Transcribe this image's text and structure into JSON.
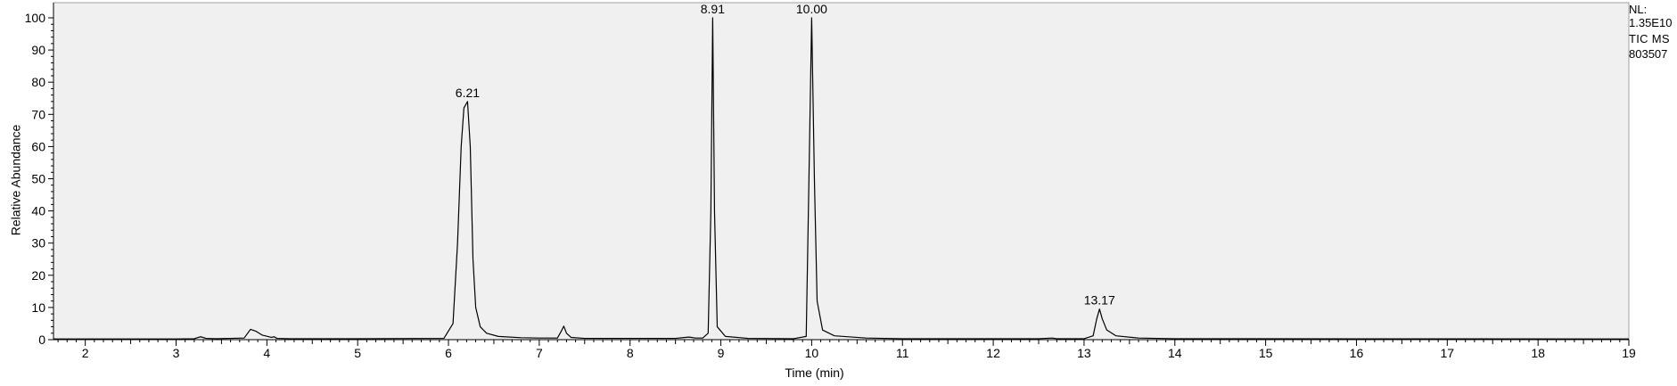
{
  "side_info": {
    "nl_label": "NL:",
    "nl_value": "1.35E10",
    "trace_label": "TIC  MS",
    "file_id": "803507"
  },
  "chart_data": {
    "type": "line",
    "title": "",
    "xlabel": "Time (min)",
    "ylabel": "Relative Abundance",
    "xlim": [
      1.65,
      19.0
    ],
    "ylim": [
      0,
      100
    ],
    "xticks": [
      2,
      3,
      4,
      5,
      6,
      7,
      8,
      9,
      10,
      11,
      12,
      13,
      14,
      15,
      16,
      17,
      18,
      19
    ],
    "yticks": [
      0,
      10,
      20,
      30,
      40,
      50,
      60,
      70,
      80,
      90,
      100
    ],
    "grid": false,
    "plot_background": "#f0f0f0",
    "line_color": "#000000",
    "series": [
      {
        "x": [
          1.65,
          2.0,
          3.0,
          3.2,
          3.27,
          3.33,
          3.45,
          3.75,
          3.82,
          3.88,
          3.95,
          4.05,
          4.08,
          4.11,
          4.25,
          5.0,
          5.95,
          6.05,
          6.1,
          6.14,
          6.17,
          6.21,
          6.24,
          6.27,
          6.3,
          6.35,
          6.42,
          6.55,
          6.8,
          7.0,
          7.2,
          7.24,
          7.27,
          7.3,
          7.35,
          7.5,
          8.5,
          8.65,
          8.72,
          8.8,
          8.86,
          8.89,
          8.91,
          8.93,
          8.96,
          9.05,
          9.3,
          9.8,
          9.94,
          9.97,
          10.0,
          10.03,
          10.06,
          10.12,
          10.25,
          10.6,
          11.0,
          12.5,
          12.65,
          12.7,
          13.0,
          13.1,
          13.14,
          13.17,
          13.2,
          13.25,
          13.35,
          13.6,
          14.0,
          19.0
        ],
        "y": [
          0.2,
          0.2,
          0.2,
          0.3,
          0.9,
          0.4,
          0.3,
          0.5,
          3.2,
          2.6,
          1.4,
          0.7,
          0.9,
          0.4,
          0.3,
          0.3,
          0.4,
          5.0,
          30.0,
          60.0,
          72.0,
          74.0,
          60.0,
          25.0,
          10.0,
          4.0,
          2.0,
          1.0,
          0.6,
          0.5,
          0.5,
          2.5,
          4.2,
          2.0,
          0.7,
          0.4,
          0.4,
          0.8,
          0.5,
          0.5,
          2.0,
          40.0,
          100.0,
          40.0,
          4.0,
          1.0,
          0.4,
          0.3,
          1.0,
          50.0,
          100.0,
          50.0,
          12.0,
          3.0,
          1.2,
          0.5,
          0.3,
          0.3,
          0.5,
          0.3,
          0.3,
          1.2,
          6.5,
          9.5,
          6.5,
          3.0,
          1.2,
          0.5,
          0.3,
          0.2
        ]
      }
    ],
    "annotations": [
      {
        "x": 6.21,
        "y": 74,
        "text": "6.21"
      },
      {
        "x": 8.91,
        "y": 100,
        "text": "8.91"
      },
      {
        "x": 10.0,
        "y": 100,
        "text": "10.00"
      },
      {
        "x": 13.17,
        "y": 9.5,
        "text": "13.17"
      }
    ]
  }
}
